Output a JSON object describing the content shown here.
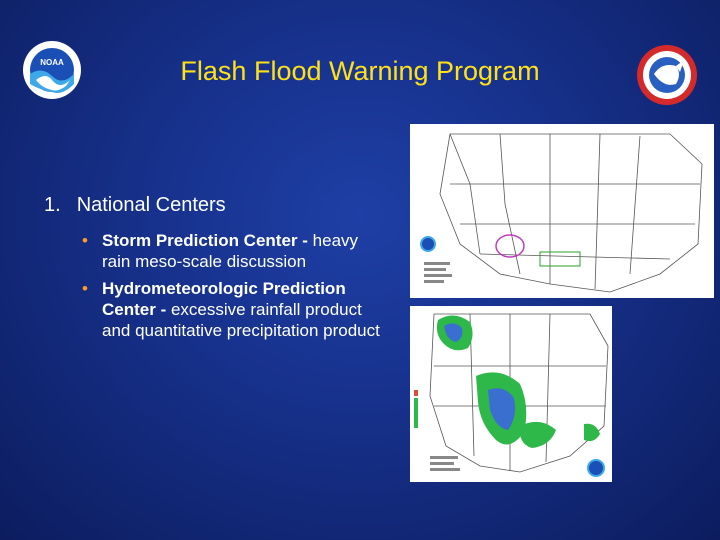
{
  "slide": {
    "title": "Flash Flood Warning Program",
    "section": {
      "number": "1.",
      "label": "National Centers"
    },
    "bullets": [
      {
        "lead": "Storm Prediction Center -",
        "rest": "heavy rain meso-scale discussion"
      },
      {
        "lead": "Hydrometeorologic Prediction Center -",
        "rest": "excessive rainfall product and quantitative precipitation product"
      }
    ]
  },
  "colors": {
    "background": "#163089",
    "title": "#ffe11a",
    "text": "#ffffff",
    "bullet": "#ff9a2e"
  },
  "logos": {
    "left": {
      "name": "noaa-logo-icon",
      "text": "NOAA"
    },
    "right": {
      "name": "nws-logo-icon"
    }
  },
  "images": {
    "top": {
      "name": "spc-mesoscale-discussion-map"
    },
    "bottom": {
      "name": "hpc-qpf-map"
    }
  }
}
